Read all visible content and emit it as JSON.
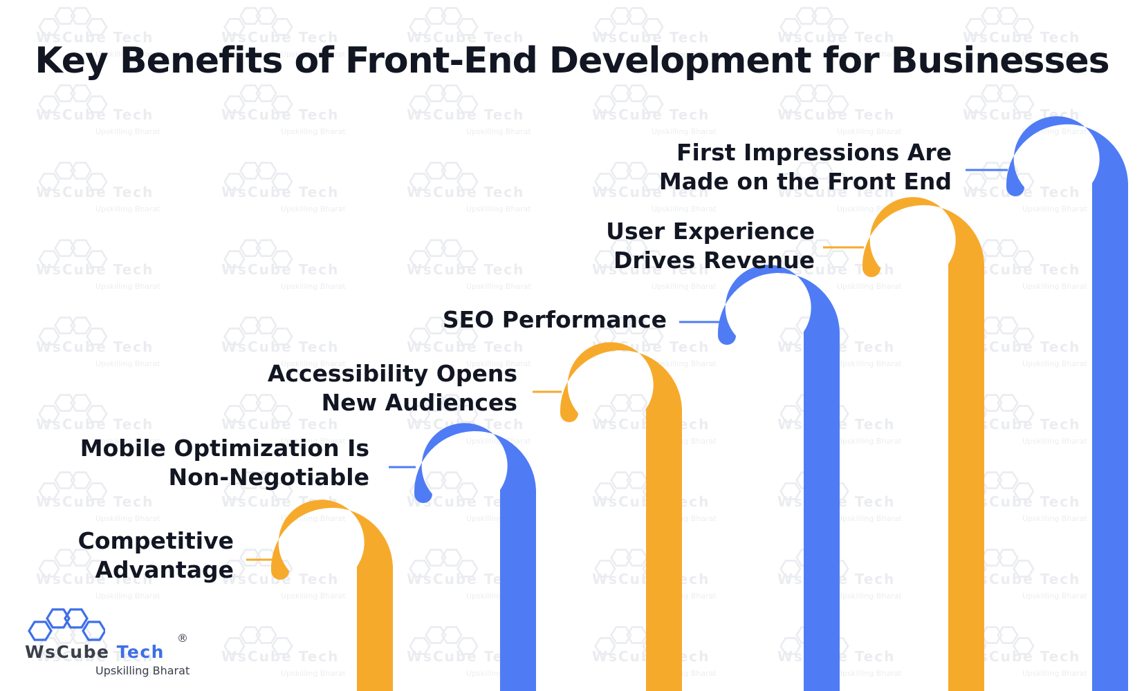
{
  "title": "Key Benefits of Front-End Development for Businesses",
  "colors": {
    "blue": "#4f7cf5",
    "orange": "#f6aa2c",
    "text": "#111622",
    "line": "#6b89e0"
  },
  "benefits": [
    {
      "lines": [
        "Competitive",
        "Advantage"
      ],
      "color": "orange"
    },
    {
      "lines": [
        "Mobile Optimization Is",
        "Non-Negotiable"
      ],
      "color": "blue"
    },
    {
      "lines": [
        "Accessibility Opens",
        "New Audiences"
      ],
      "color": "orange"
    },
    {
      "lines": [
        "SEO Performance"
      ],
      "color": "blue"
    },
    {
      "lines": [
        "User Experience",
        "Drives Revenue"
      ],
      "color": "orange"
    },
    {
      "lines": [
        "First Impressions Are",
        "Made on the Front End"
      ],
      "color": "blue"
    }
  ],
  "logo": {
    "brand_a": "WsCube",
    "brand_b": "Tech",
    "registered": "®",
    "tagline": "Upskilling Bharat",
    "icon": "hexagon-cluster-icon"
  },
  "watermark": {
    "brand": "WsCube Tech",
    "tagline": "Upskilling Bharat"
  }
}
